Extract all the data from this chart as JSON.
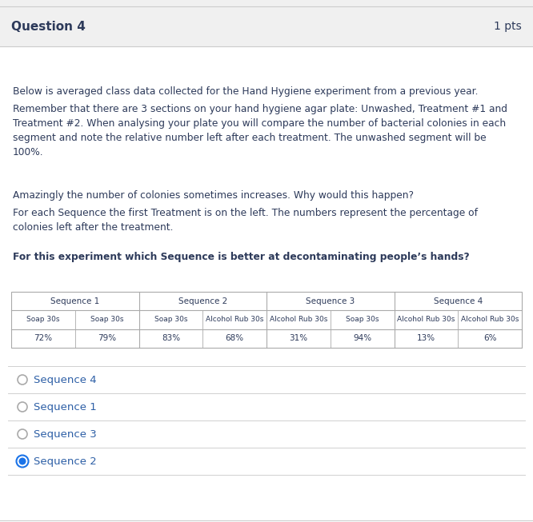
{
  "title": "Question 4",
  "pts": "1 pts",
  "bg_color": "#ffffff",
  "header_bg": "#f0f0f0",
  "border_color": "#cccccc",
  "text_color": "#2d3a5a",
  "divider_color": "#d0d0d0",
  "table_border": "#aaaaaa",
  "option_text_color": "#2d5fa6",
  "selected_circle_color": "#1a73e8",
  "paragraph1": "Below is averaged class data collected for the Hand Hygiene experiment from a previous year.",
  "paragraph2": "Remember that there are 3 sections on your hand hygiene agar plate: Unwashed, Treatment #1 and\nTreatment #2. When analysing your plate you will compare the number of bacterial colonies in each\nsegment and note the relative number left after each treatment. The unwashed segment will be\n100%.",
  "paragraph3": "Amazingly the number of colonies sometimes increases. Why would this happen?",
  "paragraph4": "For each Sequence the first Treatment is on the left. The numbers represent the percentage of\ncolonies left after the treatment.",
  "paragraph5_bold": "For this experiment which Sequence is better at decontaminating people’s hands?",
  "table_headers": [
    "Sequence 1",
    "Sequence 2",
    "Sequence 3",
    "Sequence 4"
  ],
  "table_row1": [
    "Soap 30s",
    "Soap 30s",
    "Soap 30s",
    "Alcohol Rub 30s",
    "Alcohol Rub 30s",
    "Soap 30s",
    "Alcohol Rub 30s",
    "Alcohol Rub 30s"
  ],
  "table_row2": [
    "72%",
    "79%",
    "83%",
    "68%",
    "31%",
    "94%",
    "13%",
    "6%"
  ],
  "options": [
    "Sequence 4",
    "Sequence 1",
    "Sequence 3",
    "Sequence 2"
  ],
  "selected": "Sequence 2",
  "fig_width": 6.66,
  "fig_height": 6.53,
  "dpi": 100
}
